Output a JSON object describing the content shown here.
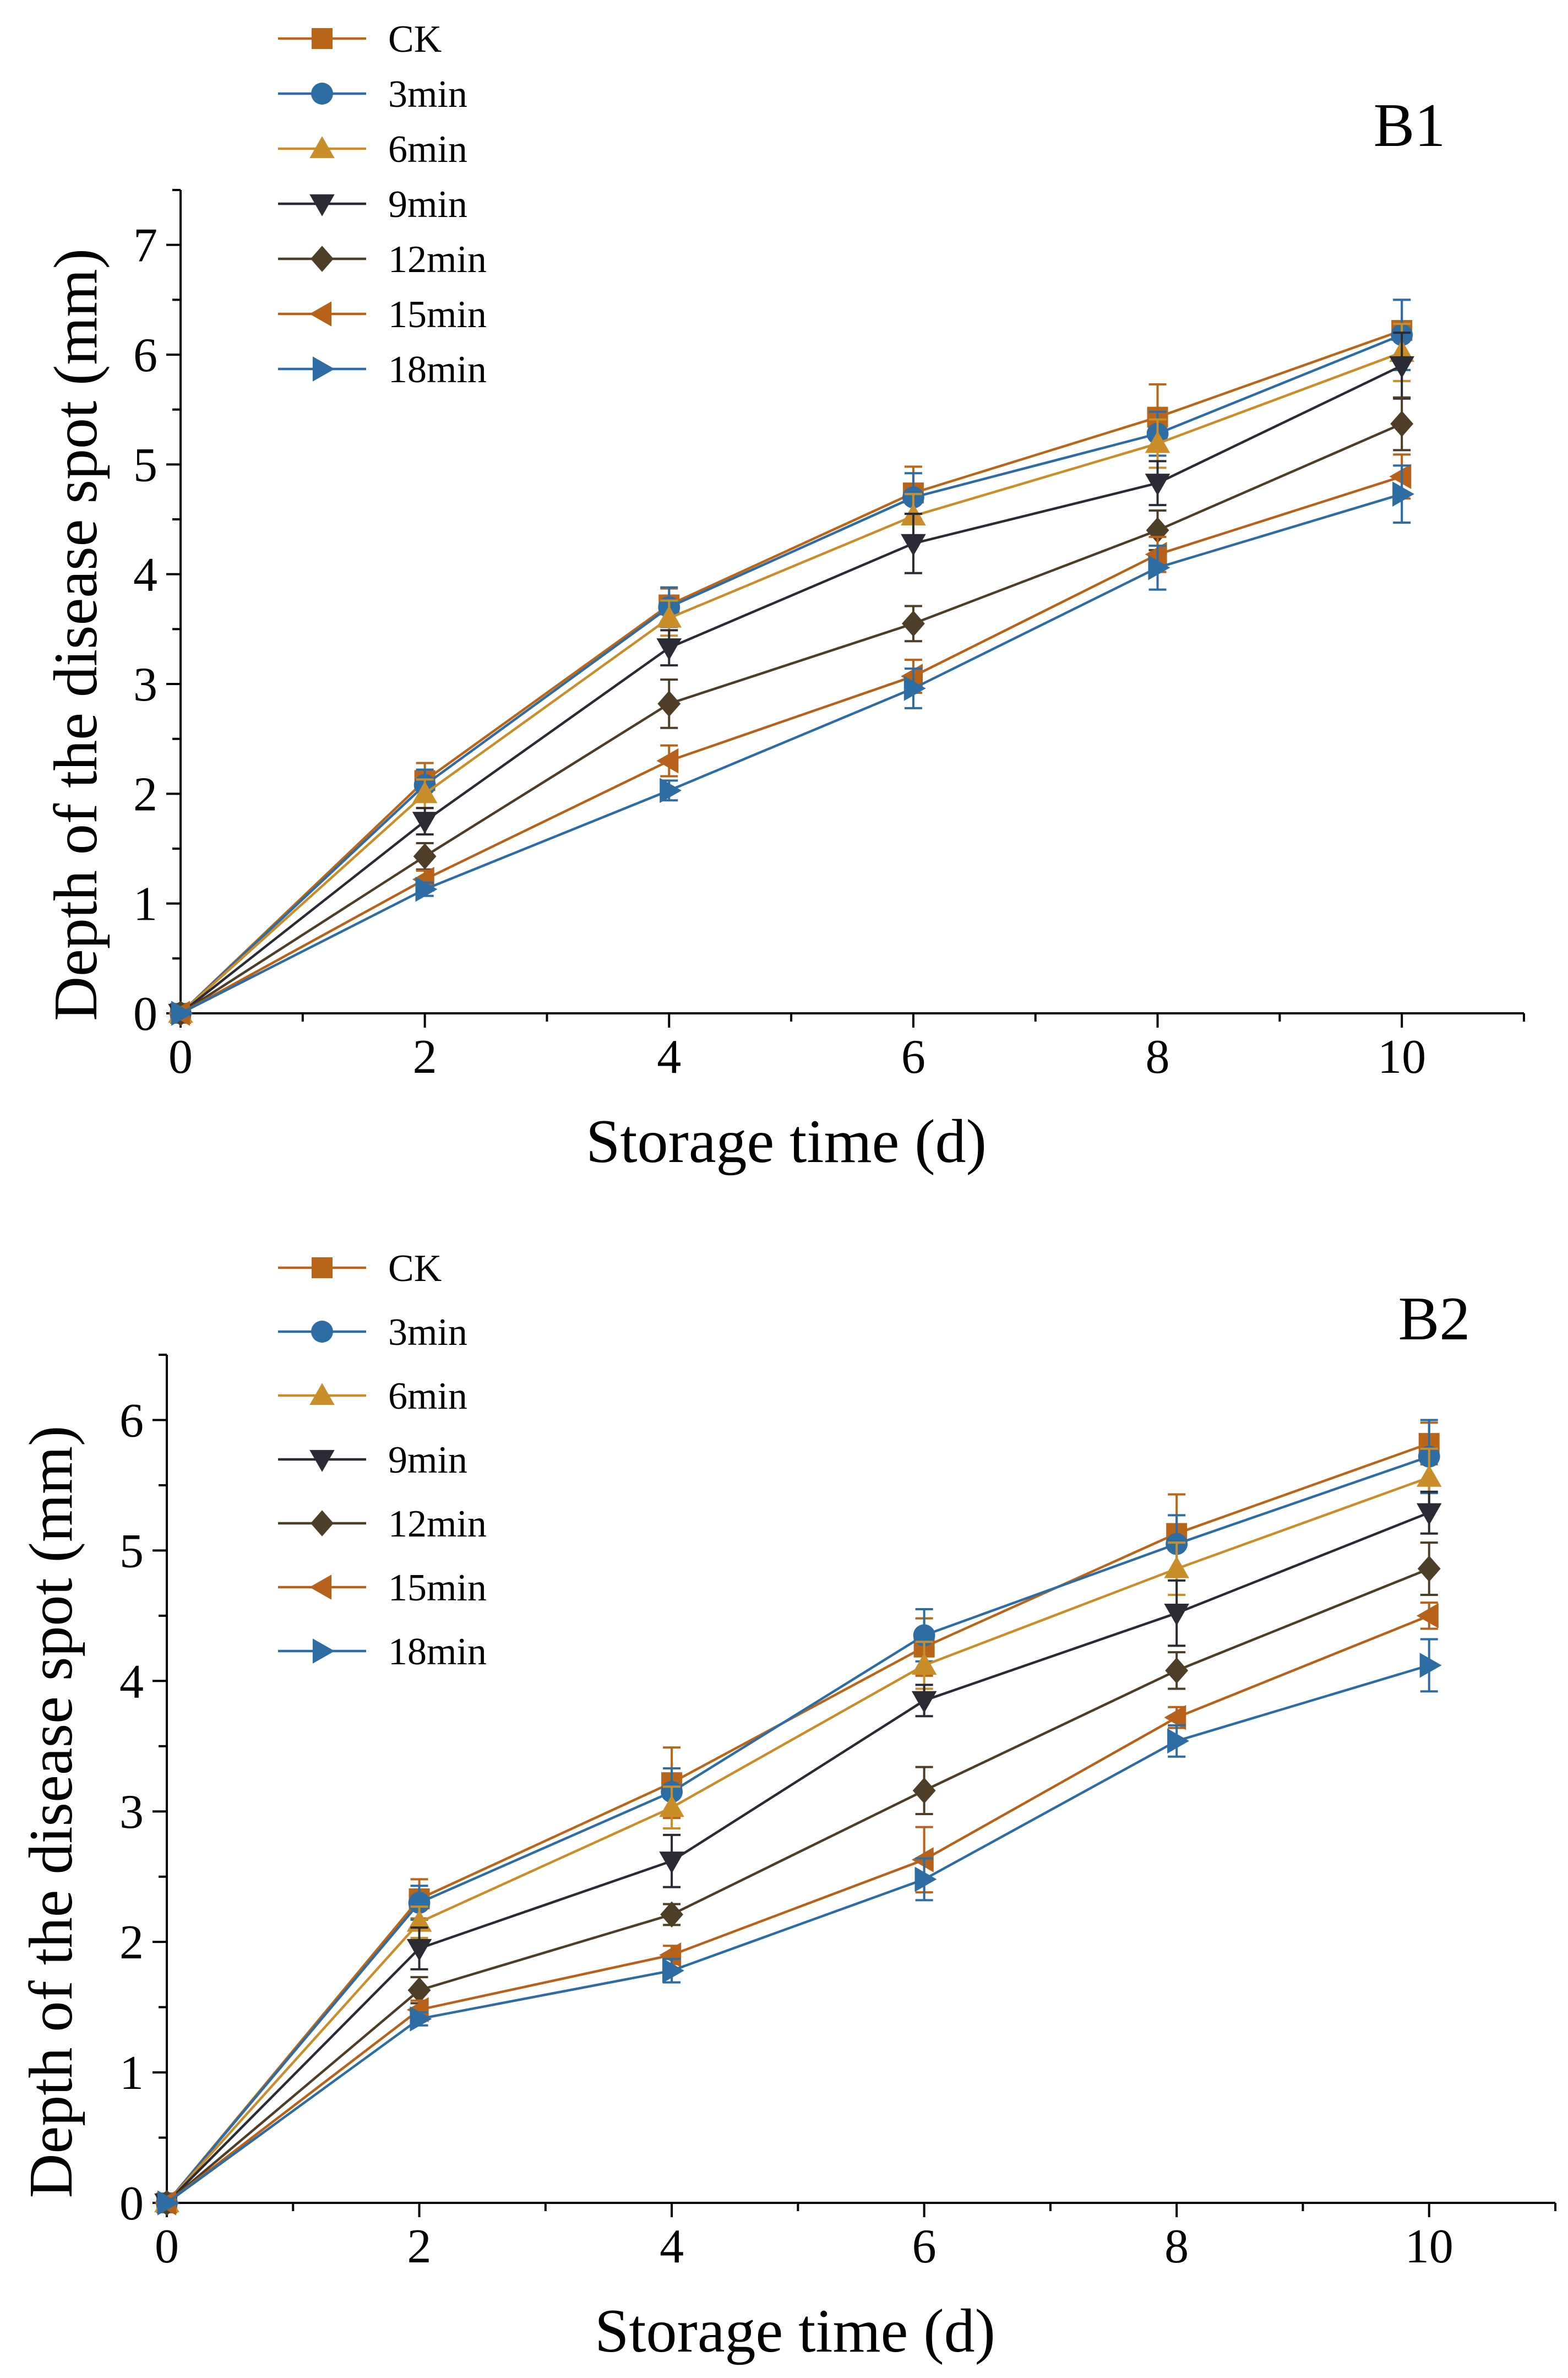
{
  "chart_data": [
    {
      "type": "line",
      "title": "B1",
      "xlabel": "Storage time (d)",
      "ylabel": "Depth of the disease spot (mm)",
      "xlim": [
        0,
        11
      ],
      "ylim": [
        0,
        7.5
      ],
      "xticks": [
        0,
        2,
        4,
        6,
        8,
        10
      ],
      "yticks": [
        0,
        1,
        2,
        3,
        4,
        5,
        6,
        7
      ],
      "x": [
        0,
        2,
        4,
        6,
        8,
        10
      ],
      "legend_position": "top-left",
      "grid": false,
      "series": [
        {
          "name": "CK",
          "color": "#b9651a",
          "marker": "square",
          "values": [
            0,
            2.12,
            3.72,
            4.74,
            5.43,
            6.22
          ],
          "errors": [
            0,
            0.16,
            0.15,
            0.24,
            0.3,
            0.28
          ]
        },
        {
          "name": "3min",
          "color": "#2e6da4",
          "marker": "circle",
          "values": [
            0,
            2.08,
            3.7,
            4.7,
            5.28,
            6.18
          ],
          "errors": [
            0,
            0.14,
            0.18,
            0.22,
            0.2,
            0.32
          ]
        },
        {
          "name": "6min",
          "color": "#c98e2a",
          "marker": "triangle-up",
          "values": [
            0,
            2.0,
            3.6,
            4.53,
            5.19,
            6.02
          ],
          "errors": [
            0,
            0.13,
            0.16,
            0.2,
            0.22,
            0.26
          ]
        },
        {
          "name": "9min",
          "color": "#2b2b35",
          "marker": "triangle-down",
          "values": [
            0,
            1.75,
            3.33,
            4.28,
            4.83,
            5.9
          ],
          "errors": [
            0,
            0.12,
            0.16,
            0.27,
            0.2,
            0.3
          ]
        },
        {
          "name": "12min",
          "color": "#4e3e28",
          "marker": "diamond",
          "values": [
            0,
            1.43,
            2.82,
            3.55,
            4.4,
            5.37
          ],
          "errors": [
            0,
            0.12,
            0.22,
            0.16,
            0.18,
            0.24
          ]
        },
        {
          "name": "15min",
          "color": "#b8611a",
          "marker": "triangle-left",
          "values": [
            0,
            1.22,
            2.3,
            3.07,
            4.18,
            4.89
          ],
          "errors": [
            0,
            0.08,
            0.14,
            0.15,
            0.16,
            0.2
          ]
        },
        {
          "name": "18min",
          "color": "#2e6da4",
          "marker": "triangle-right",
          "values": [
            0,
            1.13,
            2.03,
            2.96,
            4.06,
            4.73
          ],
          "errors": [
            0,
            0.06,
            0.09,
            0.18,
            0.2,
            0.26
          ]
        }
      ]
    },
    {
      "type": "line",
      "title": "B2",
      "xlabel": "Storage time (d)",
      "ylabel": "Depth of the disease spot (mm)",
      "xlim": [
        0,
        11
      ],
      "ylim": [
        0,
        6.5
      ],
      "xticks": [
        0,
        2,
        4,
        6,
        8,
        10
      ],
      "yticks": [
        0,
        1,
        2,
        3,
        4,
        5,
        6
      ],
      "x": [
        0,
        2,
        4,
        6,
        8,
        10
      ],
      "legend_position": "top-left",
      "grid": false,
      "series": [
        {
          "name": "CK",
          "color": "#b9651a",
          "marker": "square",
          "values": [
            0,
            2.33,
            3.22,
            4.26,
            5.13,
            5.82
          ],
          "errors": [
            0,
            0.15,
            0.27,
            0.22,
            0.3,
            0.16
          ]
        },
        {
          "name": "3min",
          "color": "#2e6da4",
          "marker": "circle",
          "values": [
            0,
            2.3,
            3.15,
            4.35,
            5.05,
            5.72
          ],
          "errors": [
            0,
            0.13,
            0.18,
            0.2,
            0.22,
            0.28
          ]
        },
        {
          "name": "6min",
          "color": "#c98e2a",
          "marker": "triangle-up",
          "values": [
            0,
            2.15,
            3.03,
            4.12,
            4.86,
            5.56
          ],
          "errors": [
            0,
            0.12,
            0.16,
            0.18,
            0.2,
            0.22
          ]
        },
        {
          "name": "9min",
          "color": "#2b2b35",
          "marker": "triangle-down",
          "values": [
            0,
            1.95,
            2.62,
            3.85,
            4.52,
            5.29
          ],
          "errors": [
            0,
            0.16,
            0.2,
            0.12,
            0.25,
            0.16
          ]
        },
        {
          "name": "12min",
          "color": "#4e3e28",
          "marker": "diamond",
          "values": [
            0,
            1.63,
            2.21,
            3.16,
            4.08,
            4.86
          ],
          "errors": [
            0,
            0.1,
            0.08,
            0.18,
            0.14,
            0.2
          ]
        },
        {
          "name": "15min",
          "color": "#b8611a",
          "marker": "triangle-left",
          "values": [
            0,
            1.48,
            1.9,
            2.63,
            3.72,
            4.5
          ],
          "errors": [
            0,
            0.07,
            0.07,
            0.25,
            0.08,
            0.1
          ]
        },
        {
          "name": "18min",
          "color": "#2e6da4",
          "marker": "triangle-right",
          "values": [
            0,
            1.41,
            1.78,
            2.48,
            3.54,
            4.12
          ],
          "errors": [
            0,
            0.05,
            0.09,
            0.16,
            0.12,
            0.2
          ]
        }
      ]
    }
  ]
}
